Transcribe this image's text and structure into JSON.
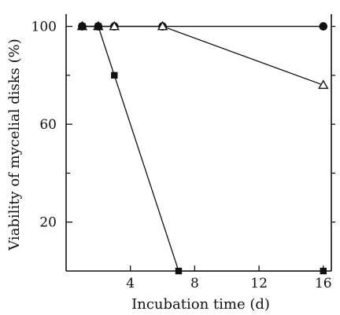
{
  "chart_data": {
    "type": "line",
    "xlabel": "Incubation time (d)",
    "ylabel": "Viability of mycelial disks (%)",
    "xlim": [
      0,
      16.5
    ],
    "ylim": [
      0,
      105
    ],
    "x_ticks": [
      4,
      8,
      12,
      16
    ],
    "y_ticks": [
      20,
      60,
      100
    ],
    "x_tick_labels": [
      "4",
      "8",
      "12",
      "16"
    ],
    "y_tick_labels": [
      "20",
      "60",
      "100"
    ],
    "minor_y_ticks": [
      40,
      80
    ],
    "right_axis_ticks": [
      20,
      40,
      60,
      80,
      100
    ],
    "grid": false,
    "legend": "none",
    "series": [
      {
        "marker": "filled-circle",
        "color": "#111111",
        "points": [
          [
            1,
            100
          ],
          [
            2,
            100
          ],
          [
            3,
            100
          ],
          [
            6,
            100
          ],
          [
            16,
            100
          ]
        ]
      },
      {
        "marker": "open-triangle",
        "color": "#111111",
        "points": [
          [
            1,
            100
          ],
          [
            2,
            100
          ],
          [
            3,
            100
          ],
          [
            6,
            100
          ],
          [
            16,
            76
          ]
        ]
      },
      {
        "marker": "filled-square",
        "color": "#111111",
        "points": [
          [
            1,
            100
          ],
          [
            2,
            100
          ],
          [
            3,
            80
          ],
          [
            7,
            0
          ],
          [
            16,
            0
          ]
        ]
      }
    ]
  }
}
